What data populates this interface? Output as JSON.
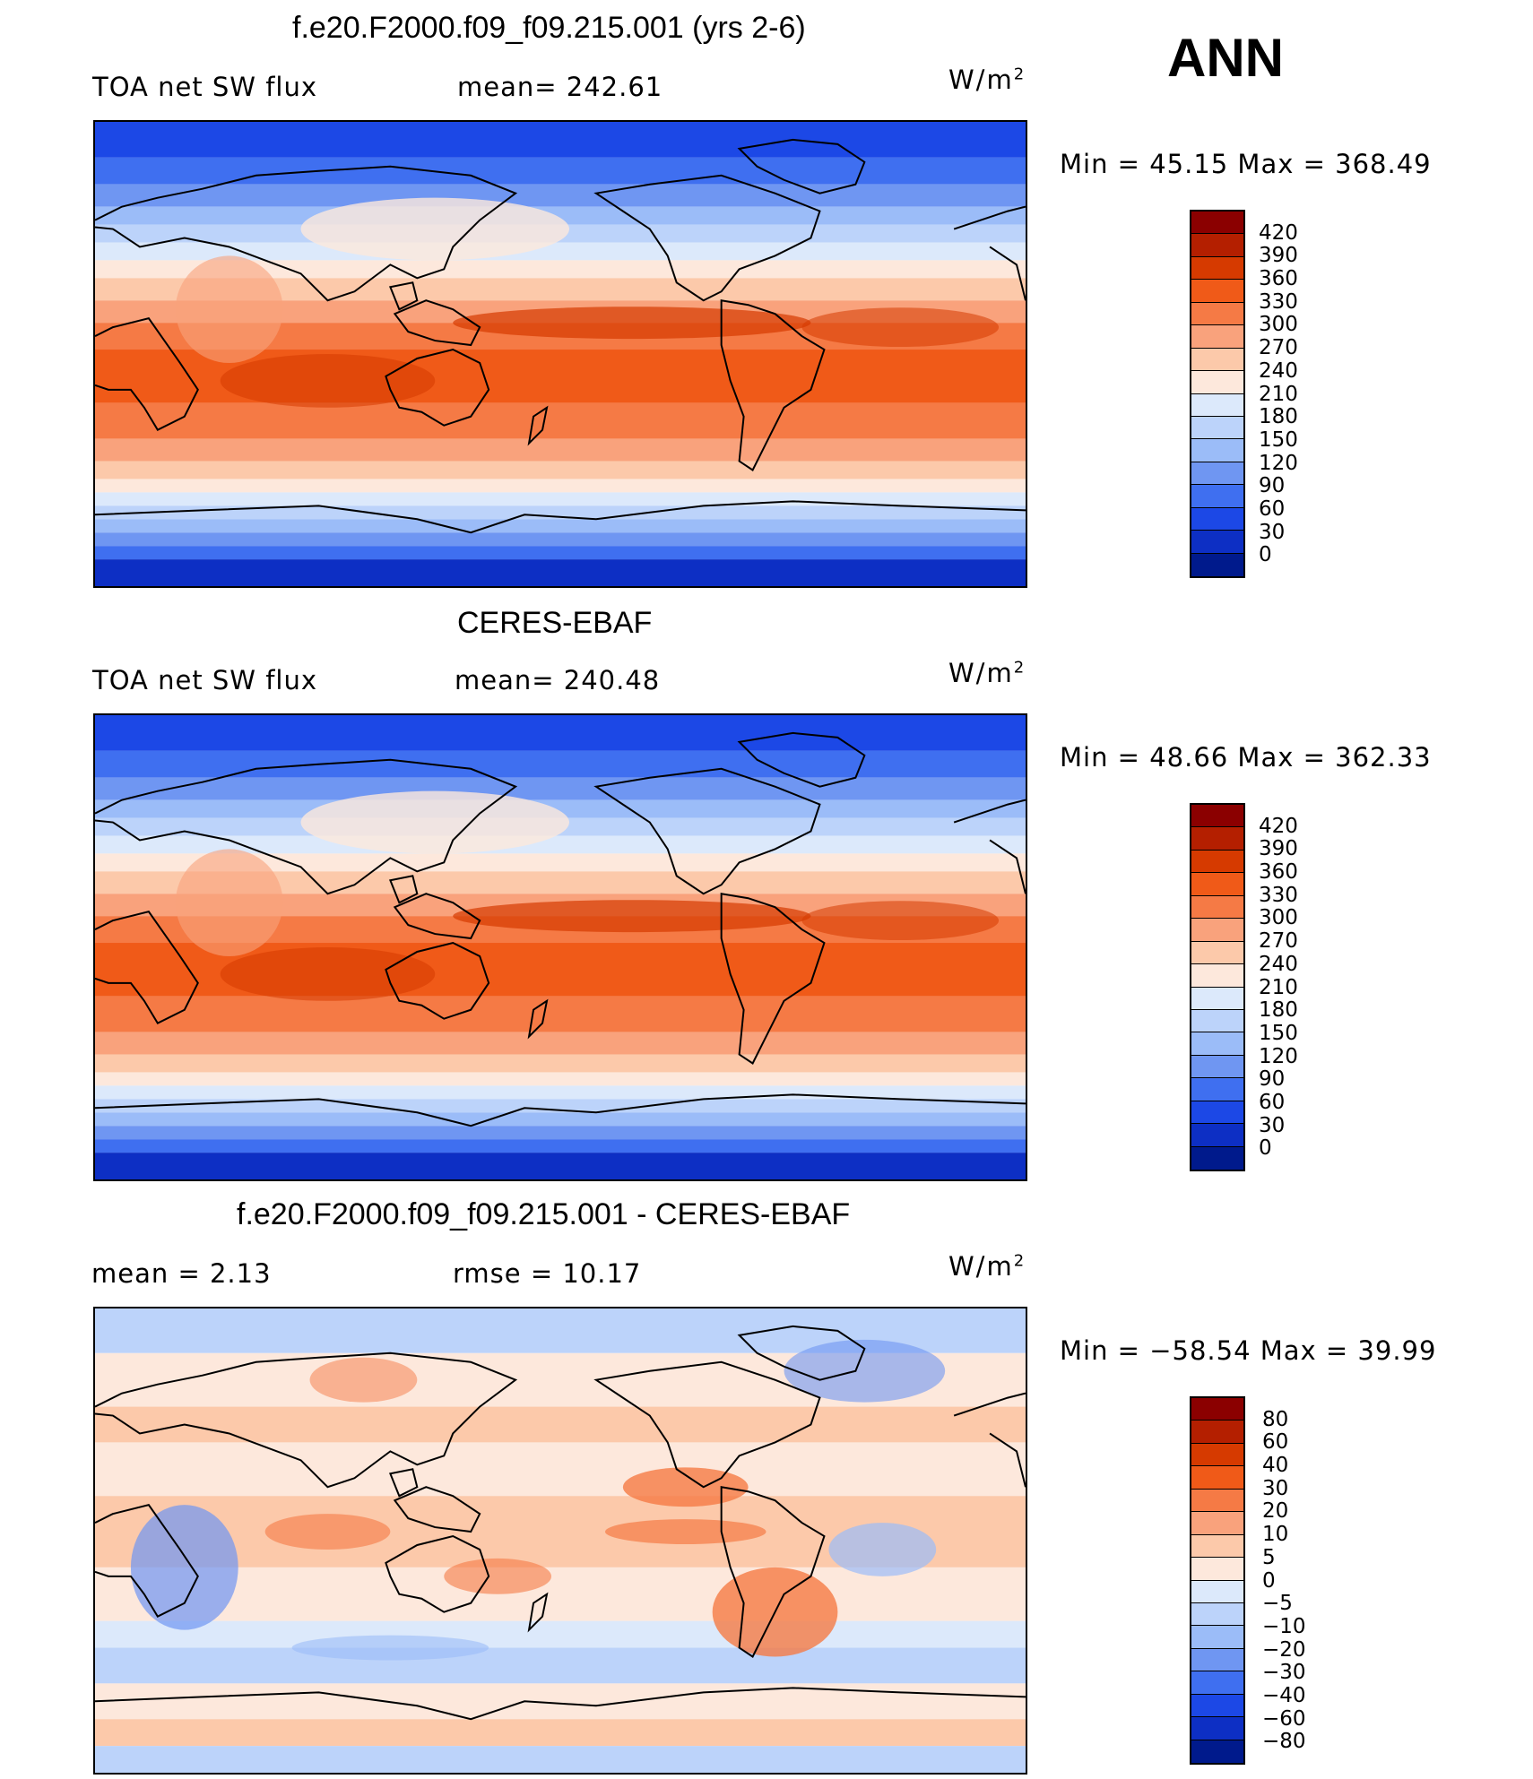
{
  "season": "ANN",
  "panels": [
    {
      "title": "f.e20.F2000.f09_f09.215.001 (yrs 2-6)",
      "left_text": "TOA net SW flux",
      "mid_text": "mean= 242.61",
      "unit": "W/m",
      "unit_exp": "2",
      "minmax": "Min =   45.15 Max = 368.49",
      "type": "abs"
    },
    {
      "title": "CERES-EBAF",
      "left_text": "TOA net SW flux",
      "mid_text": "mean= 240.48",
      "unit": "W/m",
      "unit_exp": "2",
      "minmax": "Min =   48.66 Max = 362.33",
      "type": "abs"
    },
    {
      "title": "f.e20.F2000.f09_f09.215.001 - CERES-EBAF",
      "left_text": "mean =    2.13",
      "mid_text": "rmse =   10.17",
      "unit": "W/m",
      "unit_exp": "2",
      "minmax": "Min = −58.54 Max =   39.99",
      "type": "diff"
    }
  ],
  "colorbars": {
    "abs_labels": [
      "420",
      "390",
      "360",
      "330",
      "300",
      "270",
      "240",
      "210",
      "180",
      "150",
      "120",
      "90",
      "60",
      "30",
      "0"
    ],
    "abs_colors": [
      "#8b0000",
      "#b41f00",
      "#d63a00",
      "#f05a18",
      "#f57a45",
      "#f9a27c",
      "#fcc9aa",
      "#fde8dc",
      "#dce9fb",
      "#bcd3fa",
      "#9bbcf8",
      "#6f96f2",
      "#3f6ff0",
      "#1c48e6",
      "#0d2fc4",
      "#001a8c"
    ],
    "diff_labels": [
      "80",
      "60",
      "40",
      "30",
      "20",
      "10",
      "5",
      "0",
      "−5",
      "−10",
      "−20",
      "−30",
      "−40",
      "−60",
      "−80"
    ],
    "diff_colors": [
      "#8b0000",
      "#b41f00",
      "#d63a00",
      "#f05a18",
      "#f57a45",
      "#f9a27c",
      "#fcc9aa",
      "#fde8dc",
      "#dce9fb",
      "#bcd3fa",
      "#9bbcf8",
      "#6f96f2",
      "#3f6ff0",
      "#1c48e6",
      "#0d2fc4",
      "#001a8c"
    ]
  }
}
